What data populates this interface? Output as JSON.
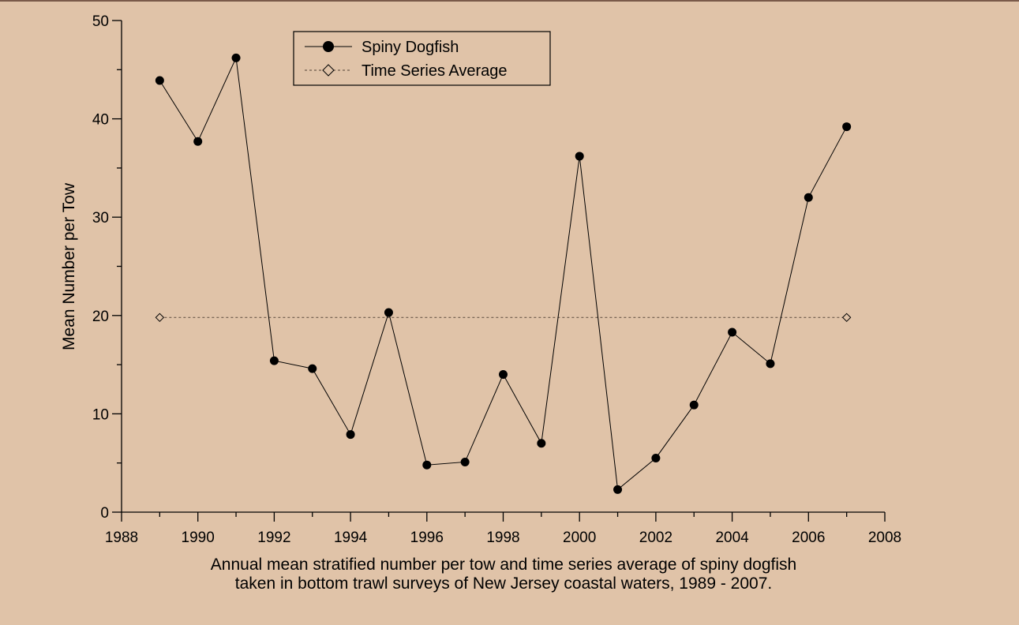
{
  "chart_data": {
    "type": "line",
    "x": [
      1989,
      1990,
      1991,
      1992,
      1993,
      1994,
      1995,
      1996,
      1997,
      1998,
      1999,
      2000,
      2001,
      2002,
      2003,
      2004,
      2005,
      2006,
      2007
    ],
    "series": [
      {
        "name": "Spiny Dogfish",
        "marker": "filled-circle",
        "values": [
          43.9,
          37.7,
          46.2,
          15.4,
          14.6,
          7.9,
          20.3,
          4.8,
          5.1,
          14.0,
          7.0,
          36.2,
          2.3,
          5.5,
          10.9,
          18.3,
          15.1,
          32.0,
          39.2
        ]
      },
      {
        "name": "Time Series Average",
        "marker": "open-diamond",
        "style": "dashed",
        "x": [
          1989,
          2007
        ],
        "values": [
          19.8,
          19.8
        ]
      }
    ],
    "xlim": [
      1988,
      2008
    ],
    "ylim": [
      0,
      50
    ],
    "xticks": [
      "1988",
      "1990",
      "1992",
      "1994",
      "1996",
      "1998",
      "2000",
      "2002",
      "2004",
      "2006",
      "2008"
    ],
    "yticks": [
      "0",
      "10",
      "20",
      "30",
      "40",
      "50"
    ],
    "xtick_values": [
      1988,
      1990,
      1992,
      1994,
      1996,
      1998,
      2000,
      2002,
      2004,
      2006,
      2008
    ],
    "ytick_values": [
      0,
      10,
      20,
      30,
      40,
      50
    ],
    "ylabel": "Mean Number per Tow",
    "xlabel_lines": [
      "Annual mean stratified number per tow and time series average of spiny dogfish",
      "taken in bottom trawl surveys of New Jersey coastal waters, 1989 - 2007."
    ],
    "legend": {
      "placement": "top-left",
      "entries": [
        "Spiny Dogfish",
        "Time Series Average"
      ]
    },
    "grid": false
  },
  "colors": {
    "background": "#e0c3a8",
    "series": "#000000",
    "average": "#6b5a4a"
  }
}
